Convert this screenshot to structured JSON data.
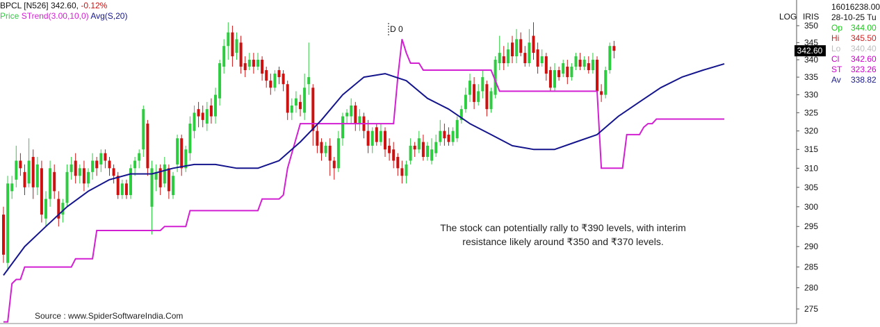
{
  "header": {
    "symbol": "BPCL [N526]",
    "price": "342.60,",
    "change": "-0.12%",
    "ind_price": "Price",
    "ind_strend": "STrend(3.00,10,0)",
    "ind_avg": "Avg(S,20)"
  },
  "toolbar": {
    "log": "LOG",
    "iris": "IRIS"
  },
  "info_panel": {
    "volume": "16016238.00",
    "date": "28-10-25 Tu",
    "rows": [
      {
        "label": "Op",
        "value": "344.00",
        "color": "#19c919"
      },
      {
        "label": "Hi",
        "value": "345.50",
        "color": "#cc2222"
      },
      {
        "label": "Lo",
        "value": "340.40",
        "color": "#bdbdbd"
      },
      {
        "label": "Cl",
        "value": "342.60",
        "color": "#cc00cc"
      },
      {
        "label": "ST",
        "value": "323.26",
        "color": "#cc00cc"
      },
      {
        "label": "Av",
        "value": "338.82",
        "color": "#1a1a8c"
      }
    ]
  },
  "last_price_tag": "342.60",
  "marker_label": "D 0",
  "annotation": {
    "line1": "The stock can potentially rally to ₹390 levels, with interim",
    "line2": "resistance likely around ₹350 and ₹370 levels."
  },
  "source": "Source : www.SpiderSoftwareIndia.Com",
  "chart_data": {
    "type": "candlestick",
    "y_axis": {
      "scale": "log",
      "ticks": [
        275,
        280,
        285,
        290,
        295,
        300,
        305,
        310,
        315,
        320,
        325,
        330,
        335,
        340,
        345,
        350
      ],
      "range": [
        272,
        352
      ]
    },
    "colors": {
      "up": "#2ecc40",
      "down": "#cc1111",
      "strend": "#d21fd2",
      "avg": "#14148c"
    },
    "candles": [
      {
        "o": 298,
        "c": 288,
        "h": 300,
        "l": 286
      },
      {
        "o": 286,
        "c": 306,
        "h": 308,
        "l": 284
      },
      {
        "o": 304,
        "c": 306,
        "h": 308,
        "l": 302
      },
      {
        "o": 307,
        "c": 312,
        "h": 316,
        "l": 305
      },
      {
        "o": 312,
        "c": 310,
        "h": 314,
        "l": 308
      },
      {
        "o": 309,
        "c": 305,
        "h": 311,
        "l": 303
      },
      {
        "o": 306,
        "c": 312,
        "h": 318,
        "l": 305
      },
      {
        "o": 313,
        "c": 305,
        "h": 315,
        "l": 302
      },
      {
        "o": 305,
        "c": 311,
        "h": 313,
        "l": 303
      },
      {
        "o": 310,
        "c": 298,
        "h": 312,
        "l": 296
      },
      {
        "o": 297,
        "c": 302,
        "h": 304,
        "l": 295
      },
      {
        "o": 302,
        "c": 310,
        "h": 312,
        "l": 300
      },
      {
        "o": 309,
        "c": 304,
        "h": 311,
        "l": 302
      },
      {
        "o": 302,
        "c": 297,
        "h": 304,
        "l": 295
      },
      {
        "o": 298,
        "c": 301,
        "h": 302,
        "l": 296
      },
      {
        "o": 301,
        "c": 309,
        "h": 311,
        "l": 300
      },
      {
        "o": 309,
        "c": 311,
        "h": 313,
        "l": 307
      },
      {
        "o": 312,
        "c": 308,
        "h": 314,
        "l": 306
      },
      {
        "o": 308,
        "c": 310,
        "h": 311,
        "l": 306
      },
      {
        "o": 310,
        "c": 306,
        "h": 312,
        "l": 304
      },
      {
        "o": 306,
        "c": 309,
        "h": 310,
        "l": 305
      },
      {
        "o": 309,
        "c": 312,
        "h": 314,
        "l": 307
      },
      {
        "o": 312,
        "c": 310,
        "h": 313,
        "l": 308
      },
      {
        "o": 311,
        "c": 314,
        "h": 315,
        "l": 309
      },
      {
        "o": 314,
        "c": 312,
        "h": 315,
        "l": 310
      },
      {
        "o": 312,
        "c": 310,
        "h": 313,
        "l": 308
      },
      {
        "o": 310,
        "c": 308,
        "h": 311,
        "l": 306
      },
      {
        "o": 308,
        "c": 303,
        "h": 309,
        "l": 302
      },
      {
        "o": 303,
        "c": 306,
        "h": 307,
        "l": 302
      },
      {
        "o": 306,
        "c": 303,
        "h": 307,
        "l": 302
      },
      {
        "o": 303,
        "c": 310,
        "h": 311,
        "l": 302
      },
      {
        "o": 310,
        "c": 312,
        "h": 313,
        "l": 308
      },
      {
        "o": 312,
        "c": 314,
        "h": 315,
        "l": 310
      },
      {
        "o": 315,
        "c": 326,
        "h": 327,
        "l": 313
      },
      {
        "o": 322,
        "c": 310,
        "h": 323,
        "l": 308
      },
      {
        "o": 300,
        "c": 310,
        "h": 312,
        "l": 293
      },
      {
        "o": 307,
        "c": 309,
        "h": 311,
        "l": 304
      },
      {
        "o": 310,
        "c": 305,
        "h": 311,
        "l": 303
      },
      {
        "o": 306,
        "c": 311,
        "h": 313,
        "l": 305
      },
      {
        "o": 310,
        "c": 304,
        "h": 311,
        "l": 302
      },
      {
        "o": 303,
        "c": 308,
        "h": 309,
        "l": 302
      },
      {
        "o": 311,
        "c": 318,
        "h": 319,
        "l": 309
      },
      {
        "o": 318,
        "c": 310,
        "h": 319,
        "l": 308
      },
      {
        "o": 310,
        "c": 315,
        "h": 316,
        "l": 309
      },
      {
        "o": 314,
        "c": 322,
        "h": 324,
        "l": 312
      },
      {
        "o": 320,
        "c": 325,
        "h": 327,
        "l": 318
      },
      {
        "o": 326,
        "c": 324,
        "h": 328,
        "l": 321
      },
      {
        "o": 325,
        "c": 323,
        "h": 327,
        "l": 321
      },
      {
        "o": 322,
        "c": 326,
        "h": 328,
        "l": 320
      },
      {
        "o": 327,
        "c": 324,
        "h": 329,
        "l": 322
      },
      {
        "o": 324,
        "c": 330,
        "h": 332,
        "l": 322
      },
      {
        "o": 329,
        "c": 339,
        "h": 340,
        "l": 327
      },
      {
        "o": 338,
        "c": 344,
        "h": 346,
        "l": 336
      },
      {
        "o": 344,
        "c": 348,
        "h": 351,
        "l": 340
      },
      {
        "o": 348,
        "c": 341,
        "h": 350,
        "l": 338
      },
      {
        "o": 342,
        "c": 346,
        "h": 348,
        "l": 340
      },
      {
        "o": 345,
        "c": 338,
        "h": 347,
        "l": 336
      },
      {
        "o": 339,
        "c": 337,
        "h": 341,
        "l": 335
      },
      {
        "o": 338,
        "c": 340,
        "h": 342,
        "l": 337
      },
      {
        "o": 340,
        "c": 338,
        "h": 342,
        "l": 336
      },
      {
        "o": 338,
        "c": 340,
        "h": 342,
        "l": 337
      },
      {
        "o": 340,
        "c": 336,
        "h": 341,
        "l": 334
      },
      {
        "o": 337,
        "c": 334,
        "h": 338,
        "l": 332
      },
      {
        "o": 334,
        "c": 332,
        "h": 336,
        "l": 330
      },
      {
        "o": 332,
        "c": 336,
        "h": 337,
        "l": 331
      },
      {
        "o": 337,
        "c": 335,
        "h": 338,
        "l": 333
      },
      {
        "o": 336,
        "c": 333,
        "h": 337,
        "l": 331
      },
      {
        "o": 333,
        "c": 325,
        "h": 334,
        "l": 323
      },
      {
        "o": 325,
        "c": 327,
        "h": 329,
        "l": 323
      },
      {
        "o": 327,
        "c": 329,
        "h": 331,
        "l": 325
      },
      {
        "o": 328,
        "c": 326,
        "h": 330,
        "l": 324
      },
      {
        "o": 325,
        "c": 332,
        "h": 336,
        "l": 323
      },
      {
        "o": 333,
        "c": 335,
        "h": 345,
        "l": 330
      },
      {
        "o": 332,
        "c": 320,
        "h": 333,
        "l": 316
      },
      {
        "o": 320,
        "c": 316,
        "h": 322,
        "l": 314
      },
      {
        "o": 317,
        "c": 314,
        "h": 318,
        "l": 312
      },
      {
        "o": 314,
        "c": 316,
        "h": 317,
        "l": 313
      },
      {
        "o": 316,
        "c": 312,
        "h": 318,
        "l": 308
      },
      {
        "o": 312,
        "c": 310,
        "h": 313,
        "l": 307
      },
      {
        "o": 310,
        "c": 318,
        "h": 320,
        "l": 309
      },
      {
        "o": 318,
        "c": 324,
        "h": 325,
        "l": 316
      },
      {
        "o": 324,
        "c": 325,
        "h": 326,
        "l": 322
      },
      {
        "o": 324,
        "c": 327,
        "h": 329,
        "l": 322
      },
      {
        "o": 327,
        "c": 322,
        "h": 328,
        "l": 320
      },
      {
        "o": 322,
        "c": 324,
        "h": 326,
        "l": 320
      },
      {
        "o": 324,
        "c": 320,
        "h": 325,
        "l": 318
      },
      {
        "o": 320,
        "c": 316,
        "h": 323,
        "l": 314
      },
      {
        "o": 316,
        "c": 320,
        "h": 321,
        "l": 314
      },
      {
        "o": 321,
        "c": 317,
        "h": 322,
        "l": 316
      },
      {
        "o": 317,
        "c": 320,
        "h": 322,
        "l": 316
      },
      {
        "o": 320,
        "c": 315,
        "h": 321,
        "l": 313
      },
      {
        "o": 316,
        "c": 314,
        "h": 318,
        "l": 312
      },
      {
        "o": 315,
        "c": 312,
        "h": 317,
        "l": 310
      },
      {
        "o": 313,
        "c": 310,
        "h": 314,
        "l": 308
      },
      {
        "o": 310,
        "c": 308,
        "h": 312,
        "l": 306
      },
      {
        "o": 308,
        "c": 311,
        "h": 312,
        "l": 306
      },
      {
        "o": 312,
        "c": 316,
        "h": 318,
        "l": 311
      },
      {
        "o": 316,
        "c": 315,
        "h": 317,
        "l": 313
      },
      {
        "o": 315,
        "c": 318,
        "h": 320,
        "l": 314
      },
      {
        "o": 317,
        "c": 313,
        "h": 319,
        "l": 312
      },
      {
        "o": 313,
        "c": 316,
        "h": 317,
        "l": 312
      },
      {
        "o": 312,
        "c": 315,
        "h": 318,
        "l": 311
      },
      {
        "o": 314,
        "c": 317,
        "h": 319,
        "l": 313
      },
      {
        "o": 317,
        "c": 320,
        "h": 323,
        "l": 316
      },
      {
        "o": 320,
        "c": 318,
        "h": 322,
        "l": 316
      },
      {
        "o": 319,
        "c": 317,
        "h": 321,
        "l": 316
      },
      {
        "o": 317,
        "c": 320,
        "h": 321,
        "l": 316
      },
      {
        "o": 318,
        "c": 323,
        "h": 324,
        "l": 317
      },
      {
        "o": 323,
        "c": 326,
        "h": 327,
        "l": 322
      },
      {
        "o": 326,
        "c": 330,
        "h": 332,
        "l": 325
      },
      {
        "o": 330,
        "c": 334,
        "h": 336,
        "l": 328
      },
      {
        "o": 333,
        "c": 328,
        "h": 335,
        "l": 326
      },
      {
        "o": 328,
        "c": 331,
        "h": 333,
        "l": 327
      },
      {
        "o": 331,
        "c": 335,
        "h": 337,
        "l": 329
      },
      {
        "o": 333,
        "c": 326,
        "h": 334,
        "l": 324
      },
      {
        "o": 326,
        "c": 331,
        "h": 332,
        "l": 325
      },
      {
        "o": 330,
        "c": 340,
        "h": 341,
        "l": 329
      },
      {
        "o": 339,
        "c": 342,
        "h": 347,
        "l": 337
      },
      {
        "o": 341,
        "c": 339,
        "h": 344,
        "l": 337
      },
      {
        "o": 339,
        "c": 343,
        "h": 345,
        "l": 338
      },
      {
        "o": 345,
        "c": 341,
        "h": 347,
        "l": 339
      },
      {
        "o": 341,
        "c": 346,
        "h": 349,
        "l": 339
      },
      {
        "o": 346,
        "c": 342,
        "h": 348,
        "l": 341
      },
      {
        "o": 342,
        "c": 339,
        "h": 344,
        "l": 338
      },
      {
        "o": 339,
        "c": 345,
        "h": 349,
        "l": 338
      },
      {
        "o": 347,
        "c": 342,
        "h": 351,
        "l": 340
      },
      {
        "o": 343,
        "c": 338,
        "h": 345,
        "l": 336
      },
      {
        "o": 339,
        "c": 341,
        "h": 343,
        "l": 338
      },
      {
        "o": 341,
        "c": 336,
        "h": 342,
        "l": 334
      },
      {
        "o": 337,
        "c": 332,
        "h": 338,
        "l": 331
      },
      {
        "o": 332,
        "c": 337,
        "h": 339,
        "l": 331
      },
      {
        "o": 337,
        "c": 335,
        "h": 338,
        "l": 334
      },
      {
        "o": 336,
        "c": 339,
        "h": 340,
        "l": 335
      },
      {
        "o": 338,
        "c": 335,
        "h": 340,
        "l": 333
      },
      {
        "o": 335,
        "c": 338,
        "h": 339,
        "l": 334
      },
      {
        "o": 338,
        "c": 341,
        "h": 342,
        "l": 337
      },
      {
        "o": 340,
        "c": 338,
        "h": 342,
        "l": 337
      },
      {
        "o": 338,
        "c": 340,
        "h": 341,
        "l": 337
      },
      {
        "o": 339,
        "c": 337,
        "h": 341,
        "l": 336
      },
      {
        "o": 337,
        "c": 340,
        "h": 342,
        "l": 336
      },
      {
        "o": 340,
        "c": 331,
        "h": 341,
        "l": 330
      },
      {
        "o": 331,
        "c": 330,
        "h": 333,
        "l": 328
      },
      {
        "o": 330,
        "c": 337,
        "h": 338,
        "l": 329
      },
      {
        "o": 337,
        "c": 344,
        "h": 345,
        "l": 336
      },
      {
        "o": 344,
        "c": 342.6,
        "h": 345.5,
        "l": 340.4
      }
    ],
    "strend": [
      {
        "i": 0,
        "v": 272
      },
      {
        "i": 1,
        "v": 272
      },
      {
        "i": 2,
        "v": 281
      },
      {
        "i": 3,
        "v": 282
      },
      {
        "i": 4,
        "v": 282
      },
      {
        "i": 5,
        "v": 285
      },
      {
        "i": 16,
        "v": 285
      },
      {
        "i": 17,
        "v": 287
      },
      {
        "i": 21,
        "v": 287
      },
      {
        "i": 22,
        "v": 294
      },
      {
        "i": 37,
        "v": 294
      },
      {
        "i": 38,
        "v": 295
      },
      {
        "i": 43,
        "v": 295
      },
      {
        "i": 44,
        "v": 299
      },
      {
        "i": 60,
        "v": 299
      },
      {
        "i": 61,
        "v": 302
      },
      {
        "i": 65,
        "v": 302
      },
      {
        "i": 66,
        "v": 303
      },
      {
        "i": 67,
        "v": 310
      },
      {
        "i": 70,
        "v": 322
      },
      {
        "i": 92,
        "v": 322
      },
      {
        "i": 93,
        "v": 335
      },
      {
        "i": 94,
        "v": 346
      },
      {
        "i": 95,
        "v": 342
      },
      {
        "i": 96,
        "v": 339
      },
      {
        "i": 98,
        "v": 339
      },
      {
        "i": 99,
        "v": 337
      },
      {
        "i": 115,
        "v": 337
      },
      {
        "i": 116,
        "v": 334
      },
      {
        "i": 117,
        "v": 331
      },
      {
        "i": 138,
        "v": 331
      },
      {
        "i": 140,
        "v": 331
      },
      {
        "i": 141,
        "v": 310
      },
      {
        "i": 146,
        "v": 310
      },
      {
        "i": 147,
        "v": 319
      },
      {
        "i": 150,
        "v": 319
      },
      {
        "i": 151,
        "v": 321
      },
      {
        "i": 152,
        "v": 322
      },
      {
        "i": 153,
        "v": 322
      },
      {
        "i": 154,
        "v": 323.26
      },
      {
        "i": 170,
        "v": 323.26
      }
    ],
    "avg": [
      {
        "i": 0,
        "v": 283
      },
      {
        "i": 5,
        "v": 290
      },
      {
        "i": 10,
        "v": 295
      },
      {
        "i": 15,
        "v": 300
      },
      {
        "i": 20,
        "v": 304
      },
      {
        "i": 25,
        "v": 307
      },
      {
        "i": 30,
        "v": 308.5
      },
      {
        "i": 35,
        "v": 308.5
      },
      {
        "i": 40,
        "v": 310
      },
      {
        "i": 45,
        "v": 311
      },
      {
        "i": 50,
        "v": 311
      },
      {
        "i": 55,
        "v": 310
      },
      {
        "i": 60,
        "v": 310
      },
      {
        "i": 65,
        "v": 312
      },
      {
        "i": 70,
        "v": 317
      },
      {
        "i": 75,
        "v": 323
      },
      {
        "i": 80,
        "v": 330
      },
      {
        "i": 85,
        "v": 335
      },
      {
        "i": 90,
        "v": 336
      },
      {
        "i": 95,
        "v": 334
      },
      {
        "i": 100,
        "v": 329
      },
      {
        "i": 105,
        "v": 326
      },
      {
        "i": 110,
        "v": 322
      },
      {
        "i": 115,
        "v": 319
      },
      {
        "i": 120,
        "v": 316
      },
      {
        "i": 125,
        "v": 315
      },
      {
        "i": 130,
        "v": 315
      },
      {
        "i": 135,
        "v": 317
      },
      {
        "i": 140,
        "v": 319
      },
      {
        "i": 145,
        "v": 324
      },
      {
        "i": 150,
        "v": 328
      },
      {
        "i": 155,
        "v": 332
      },
      {
        "i": 160,
        "v": 335
      },
      {
        "i": 165,
        "v": 337
      },
      {
        "i": 170,
        "v": 338.82
      }
    ]
  }
}
